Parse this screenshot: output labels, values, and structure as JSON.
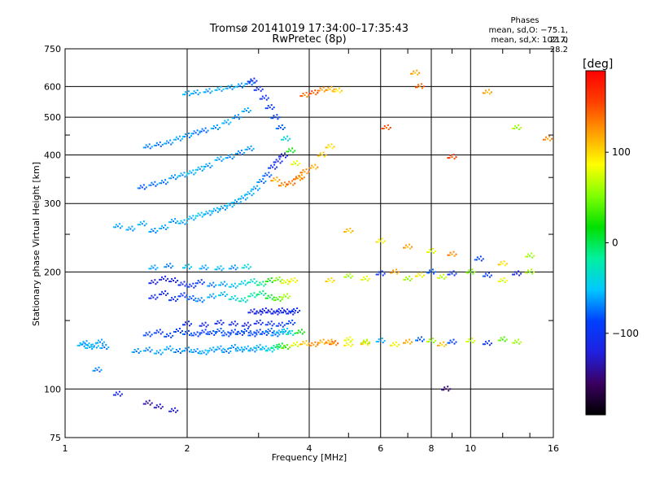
{
  "header": {
    "title_line1": "Tromsø 20141019 17:34:00–17:35:43",
    "title_line2": "RwPretec (8p)"
  },
  "stats": {
    "heading": "Phases",
    "line_o": "mean, sd,O: −75.1, 21.0",
    "line_x": "mean, sd,X: 102.7, 28.2"
  },
  "colorbar": {
    "unit_label": "[deg]",
    "tick_values": [
      100,
      0,
      -100
    ],
    "tick_labels": [
      "100",
      "0",
      "−100"
    ],
    "range": [
      -190,
      190
    ],
    "colors": [
      "#000000",
      "#3a0060",
      "#2020e0",
      "#0040ff",
      "#00c8ff",
      "#00f0a0",
      "#00e000",
      "#80ff00",
      "#ffff00",
      "#ffa000",
      "#ff4000",
      "#ff0000"
    ]
  },
  "chart_data": {
    "type": "scatter",
    "title": "Tromsø 20141019 17:34:00–17:35:43",
    "subtitle": "RwPretec (8p)",
    "xlabel": "Frequency [MHz]",
    "ylabel": "Stationary phase Virtual Height [km]",
    "xscale": "log",
    "yscale": "log",
    "xlim": [
      1,
      16
    ],
    "ylim": [
      75,
      750
    ],
    "x_ticks": [
      1,
      2,
      4,
      6,
      8,
      10,
      16
    ],
    "x_tick_labels": [
      "1",
      "2",
      "4",
      "6",
      "8",
      "10",
      "16"
    ],
    "y_ticks": [
      75,
      100,
      200,
      300,
      400,
      500,
      600,
      750
    ],
    "y_tick_labels": [
      "75",
      "100",
      "200",
      "300",
      "400",
      "500",
      "600",
      "750"
    ],
    "grid": true,
    "color_encoding": "phase [deg]",
    "series": [
      {
        "x": [
          1.1,
          1.12,
          1.15,
          1.18,
          1.22,
          1.25,
          1.2,
          1.5,
          1.6,
          1.7,
          1.8,
          1.9,
          2.0,
          2.1,
          2.2,
          2.3,
          2.4,
          2.5,
          2.6,
          2.7,
          2.8,
          2.9,
          3.0,
          3.1,
          3.2,
          3.3,
          3.4,
          3.5,
          3.7,
          3.9,
          4.1,
          4.3,
          4.6,
          5.0,
          5.5
        ],
        "y": [
          130,
          131,
          128,
          129,
          132,
          128,
          112,
          125,
          126,
          124,
          127,
          125,
          126,
          125,
          124,
          126,
          127,
          125,
          128,
          126,
          127,
          126,
          128,
          127,
          126,
          128,
          129,
          128,
          130,
          131,
          130,
          132,
          131,
          130,
          132
        ],
        "phase": [
          -60,
          -62,
          -55,
          -58,
          -60,
          -65,
          -70,
          -65,
          -68,
          -60,
          -62,
          -70,
          -66,
          -64,
          -58,
          -60,
          -62,
          -66,
          -64,
          -60,
          -58,
          -62,
          -55,
          -50,
          -40,
          -20,
          10,
          40,
          80,
          110,
          130,
          120,
          140,
          90,
          60
        ]
      },
      {
        "x": [
          1.6,
          1.7,
          1.8,
          1.9,
          2.0,
          2.1,
          2.2,
          2.3,
          2.4,
          2.5,
          2.6,
          2.7,
          2.8,
          2.9,
          3.0,
          3.1,
          3.2,
          3.3,
          3.4,
          3.5,
          3.6,
          3.8
        ],
        "y": [
          138,
          140,
          137,
          141,
          139,
          138,
          140,
          139,
          141,
          138,
          140,
          139,
          141,
          138,
          140,
          139,
          141,
          138,
          140,
          141,
          139,
          140
        ],
        "phase": [
          -90,
          -95,
          -88,
          -92,
          -85,
          -90,
          -94,
          -88,
          -80,
          -86,
          -92,
          -90,
          -84,
          -88,
          -90,
          -82,
          -76,
          -70,
          -60,
          -50,
          -30,
          20
        ]
      },
      {
        "x": [
          2.0,
          2.2,
          2.4,
          2.6,
          2.8,
          3.0,
          3.2,
          3.4,
          3.6
        ],
        "y": [
          147,
          146,
          148,
          147,
          146,
          148,
          147,
          146,
          148
        ],
        "phase": [
          -110,
          -112,
          -108,
          -110,
          -115,
          -105,
          -100,
          -95,
          -90
        ]
      },
      {
        "x": [
          2.9,
          3.0,
          3.1,
          3.2,
          3.3,
          3.4,
          3.5,
          3.6,
          3.7
        ],
        "y": [
          158,
          157,
          159,
          158,
          157,
          159,
          158,
          157,
          159
        ],
        "phase": [
          -120,
          -118,
          -116,
          -120,
          -114,
          -110,
          -112,
          -108,
          -105
        ]
      },
      {
        "x": [
          1.65,
          1.75,
          1.85,
          1.95,
          2.05,
          2.15,
          2.3,
          2.45,
          2.6,
          2.75,
          2.9,
          3.05,
          3.2,
          3.35,
          3.5
        ],
        "y": [
          172,
          176,
          170,
          174,
          171,
          169,
          173,
          175,
          171,
          169,
          174,
          176,
          172,
          170,
          173
        ],
        "phase": [
          -110,
          -105,
          -100,
          -95,
          -80,
          -70,
          -60,
          -50,
          -40,
          -30,
          -20,
          -10,
          10,
          40,
          60
        ]
      },
      {
        "x": [
          1.65,
          1.75,
          1.85,
          1.95,
          2.05,
          2.15,
          2.3,
          2.45,
          2.6,
          2.75,
          2.9,
          3.05,
          3.2,
          3.35,
          3.5,
          3.65
        ],
        "y": [
          188,
          192,
          190,
          186,
          184,
          188,
          185,
          186,
          184,
          187,
          189,
          186,
          190,
          191,
          188,
          190
        ],
        "phase": [
          -120,
          -115,
          -110,
          -105,
          -100,
          -95,
          -70,
          -60,
          -50,
          -40,
          -30,
          -10,
          20,
          50,
          80,
          90
        ]
      },
      {
        "x": [
          1.65,
          1.8,
          2.0,
          2.2,
          2.4,
          2.6,
          2.8
        ],
        "y": [
          205,
          207,
          206,
          205,
          204,
          205,
          206
        ],
        "phase": [
          -60,
          -70,
          -50,
          -60,
          -55,
          -65,
          -40
        ]
      },
      {
        "x": [
          1.35,
          1.45,
          1.55,
          1.65,
          1.75,
          1.85,
          1.95,
          2.05,
          2.15,
          2.25,
          2.35,
          2.45,
          2.55,
          2.65,
          2.75,
          2.85,
          2.95,
          3.05,
          3.15,
          3.25,
          3.35,
          3.45
        ],
        "y": [
          262,
          258,
          266,
          255,
          260,
          270,
          268,
          275,
          280,
          283,
          288,
          292,
          297,
          303,
          310,
          318,
          328,
          342,
          355,
          372,
          385,
          398
        ],
        "phase": [
          -60,
          -62,
          -58,
          -65,
          -60,
          -62,
          -58,
          -55,
          -50,
          -60,
          -58,
          -62,
          -55,
          -60,
          -58,
          -56,
          -60,
          -70,
          -80,
          -100,
          -110,
          -115
        ]
      },
      {
        "x": [
          1.55,
          1.65,
          1.75,
          1.85,
          1.95,
          2.05,
          2.15,
          2.25,
          2.4,
          2.55,
          2.7,
          2.85
        ],
        "y": [
          330,
          336,
          340,
          350,
          355,
          360,
          368,
          375,
          390,
          395,
          405,
          415
        ],
        "phase": [
          -80,
          -75,
          -70,
          -65,
          -60,
          -55,
          -58,
          -62,
          -60,
          -66,
          -70,
          -64
        ]
      },
      {
        "x": [
          1.6,
          1.7,
          1.8,
          1.9,
          2.0,
          2.1,
          2.2,
          2.35,
          2.5,
          2.65,
          2.8
        ],
        "y": [
          420,
          425,
          430,
          440,
          448,
          456,
          462,
          470,
          485,
          500,
          520
        ],
        "phase": [
          -70,
          -72,
          -66,
          -60,
          -64,
          -70,
          -75,
          -62,
          -58,
          -66,
          -60
        ]
      },
      {
        "x": [
          2.0,
          2.1,
          2.25,
          2.4,
          2.55,
          2.7,
          2.85
        ],
        "y": [
          575,
          578,
          583,
          590,
          596,
          602,
          612
        ],
        "phase": [
          -58,
          -60,
          -62,
          -56,
          -60,
          -64,
          -70
        ]
      },
      {
        "x": [
          2.9,
          3.0,
          3.1,
          3.2,
          3.3,
          3.4,
          3.5,
          3.6,
          3.7,
          3.8
        ],
        "y": [
          620,
          590,
          560,
          530,
          500,
          470,
          440,
          410,
          380,
          350
        ],
        "phase": [
          -110,
          -105,
          -100,
          -95,
          -90,
          -80,
          -40,
          20,
          80,
          120
        ]
      },
      {
        "x": [
          3.3,
          3.45,
          3.6,
          3.75,
          3.9,
          4.1,
          4.3,
          4.5
        ],
        "y": [
          345,
          335,
          338,
          348,
          362,
          372,
          400,
          420
        ],
        "phase": [
          120,
          130,
          140,
          135,
          130,
          120,
          110,
          100
        ]
      },
      {
        "x": [
          3.9,
          4.1,
          4.3,
          4.5,
          4.7
        ],
        "y": [
          570,
          578,
          588,
          590,
          585
        ],
        "phase": [
          140,
          150,
          130,
          120,
          100
        ]
      },
      {
        "x": [
          4.5,
          5.0,
          5.5,
          6.0,
          6.5,
          7.0,
          7.5,
          8.0,
          8.5,
          9.0,
          10.0,
          11.0,
          12.0,
          13.0,
          14.0
        ],
        "y": [
          190,
          195,
          192,
          198,
          200,
          192,
          196,
          200,
          194,
          198,
          200,
          196,
          190,
          198,
          200
        ],
        "phase": [
          100,
          60,
          80,
          -100,
          120,
          60,
          90,
          -80,
          70,
          -100,
          50,
          -90,
          80,
          -110,
          60
        ]
      },
      {
        "x": [
          4.5,
          5.0,
          5.5,
          6.0,
          6.5,
          7.0,
          7.5,
          8.0,
          8.5,
          9.0,
          10.0,
          11.0,
          12.0,
          13.0
        ],
        "y": [
          132,
          134,
          131,
          133,
          130,
          132,
          134,
          133,
          130,
          132,
          133,
          131,
          134,
          132
        ],
        "phase": [
          120,
          80,
          100,
          -60,
          90,
          120,
          -80,
          60,
          110,
          -90,
          70,
          -100,
          40,
          60
        ]
      },
      {
        "x": [
          5.0,
          6.0,
          7.0,
          8.0,
          9.0,
          10.5,
          12.0,
          14.0
        ],
        "y": [
          255,
          240,
          232,
          226,
          222,
          216,
          210,
          220
        ],
        "phase": [
          110,
          90,
          120,
          80,
          130,
          -90,
          100,
          60
        ]
      },
      {
        "x": [
          6.2,
          7.5,
          9.0,
          11.0,
          13.0,
          15.5,
          7.3,
          8.7
        ],
        "y": [
          470,
          600,
          395,
          580,
          470,
          440,
          650,
          100
        ],
        "phase": [
          150,
          140,
          160,
          120,
          60,
          130,
          120,
          -150
        ]
      },
      {
        "x": [
          1.6,
          1.7,
          1.85,
          1.35
        ],
        "y": [
          92,
          90,
          88,
          97
        ],
        "phase": [
          -140,
          -130,
          -120,
          -110
        ]
      }
    ]
  }
}
